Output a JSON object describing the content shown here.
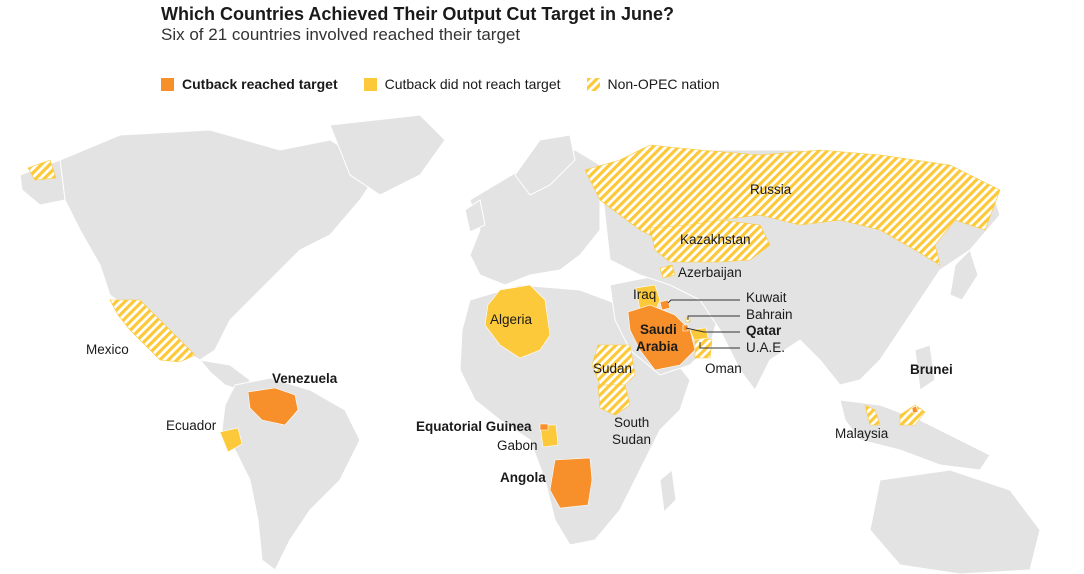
{
  "title": "Which Countries Achieved Their Output Cut Target in June?",
  "subtitle": "Six of 21 countries involved reached their target",
  "legend": [
    {
      "label": "Cutback reached target",
      "pattern": "solid-orange"
    },
    {
      "label": "Cutback did not reach target",
      "pattern": "solid-yellow"
    },
    {
      "label": "Non-OPEC nation",
      "pattern": "hatched"
    }
  ],
  "colors": {
    "reached": "#f7902b",
    "not_reached": "#fcc93a",
    "hatch": "#fcc93a",
    "land": "#e3e3e3",
    "border": "#ffffff"
  },
  "countries": [
    {
      "name": "Russia",
      "status": "not-reached",
      "opec": false
    },
    {
      "name": "Kazakhstan",
      "status": "not-reached",
      "opec": false
    },
    {
      "name": "Azerbaijan",
      "status": "not-reached",
      "opec": false
    },
    {
      "name": "Iraq",
      "status": "not-reached",
      "opec": true
    },
    {
      "name": "Kuwait",
      "status": "reached",
      "opec": true
    },
    {
      "name": "Bahrain",
      "status": "not-reached",
      "opec": false
    },
    {
      "name": "Qatar",
      "status": "reached",
      "opec": true
    },
    {
      "name": "Saudi Arabia",
      "status": "reached",
      "opec": true
    },
    {
      "name": "U.A.E.",
      "status": "not-reached",
      "opec": true
    },
    {
      "name": "Oman",
      "status": "not-reached",
      "opec": false
    },
    {
      "name": "Algeria",
      "status": "not-reached",
      "opec": true
    },
    {
      "name": "Mexico",
      "status": "not-reached",
      "opec": false
    },
    {
      "name": "Venezuela",
      "status": "reached",
      "opec": true
    },
    {
      "name": "Ecuador",
      "status": "not-reached",
      "opec": true
    },
    {
      "name": "Equatorial Guinea",
      "status": "reached",
      "opec": true
    },
    {
      "name": "Gabon",
      "status": "not-reached",
      "opec": true
    },
    {
      "name": "Angola",
      "status": "reached",
      "opec": true
    },
    {
      "name": "Sudan",
      "status": "not-reached",
      "opec": false
    },
    {
      "name": "South Sudan",
      "status": "not-reached",
      "opec": false
    },
    {
      "name": "Malaysia",
      "status": "not-reached",
      "opec": false
    },
    {
      "name": "Brunei",
      "status": "not-reached",
      "opec": false
    }
  ],
  "labels": {
    "russia": "Russia",
    "kazakhstan": "Kazakhstan",
    "azerbaijan": "Azerbaijan",
    "iraq": "Iraq",
    "kuwait": "Kuwait",
    "bahrain": "Bahrain",
    "qatar": "Qatar",
    "saudi_1": "Saudi",
    "saudi_2": "Arabia",
    "uae": "U.A.E.",
    "oman": "Oman",
    "algeria": "Algeria",
    "mexico": "Mexico",
    "venezuela": "Venezuela",
    "ecuador": "Ecuador",
    "eq_guinea": "Equatorial Guinea",
    "gabon": "Gabon",
    "angola": "Angola",
    "sudan": "Sudan",
    "south_sudan_1": "South",
    "south_sudan_2": "Sudan",
    "malaysia": "Malaysia",
    "brunei": "Brunei"
  }
}
